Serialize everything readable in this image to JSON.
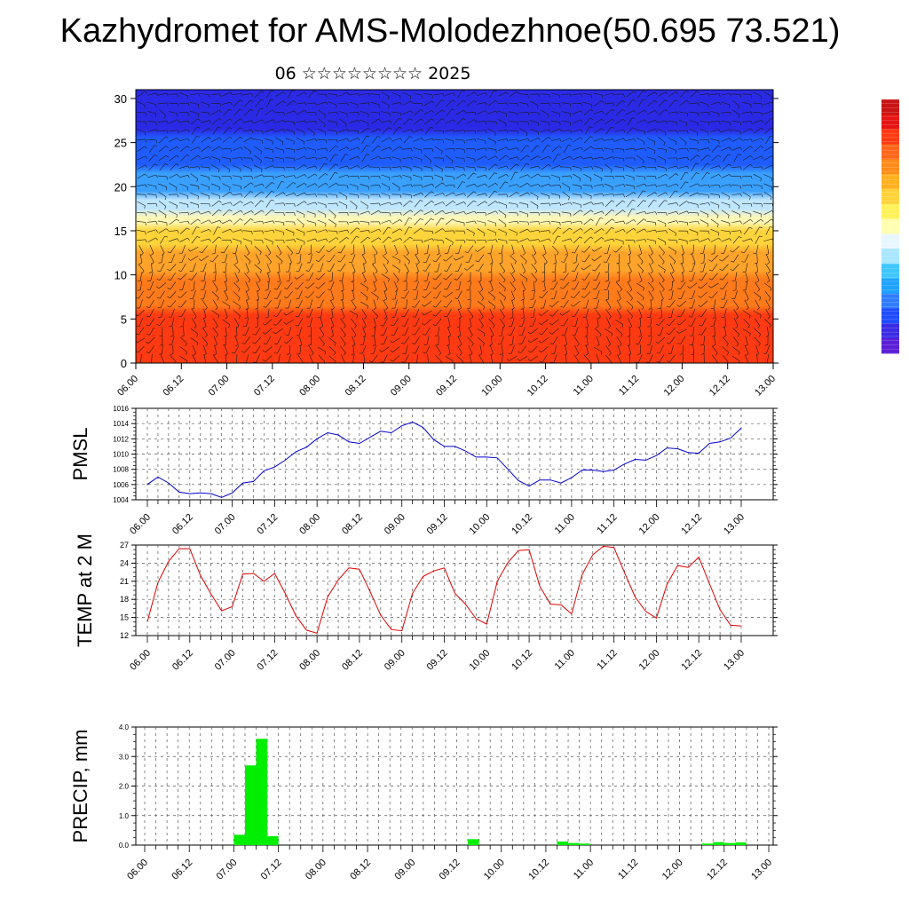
{
  "title": "Kazhydromet for AMS-Molodezhnoe(50.695 73.521)",
  "subtitle": "06 ☆☆☆☆☆☆☆☆ 2025",
  "chart_data": [
    {
      "type": "heatmap",
      "description_of_content": "time-height field with overlaid wind vectors",
      "x_tick_labels": [
        "06.00",
        "06.12",
        "07.00",
        "07.12",
        "08.00",
        "08.12",
        "09.00",
        "09.12",
        "10.00",
        "10.12",
        "11.00",
        "11.12",
        "12.00",
        "12.12",
        "13.00"
      ],
      "y_ticks": [
        0,
        5,
        10,
        15,
        20,
        25,
        30
      ],
      "ylim": [
        0,
        31
      ],
      "colorbar_colors": [
        "#5a1fd6",
        "#3a2be6",
        "#1f4cff",
        "#2f7cff",
        "#1fa2ff",
        "#3fc6ff",
        "#a9e6ff",
        "#e8f6ff",
        "#ffffb0",
        "#fff15a",
        "#ffd23a",
        "#ffb01f",
        "#ff8c1a",
        "#ff661a",
        "#ff3a12",
        "#e61414",
        "#c81414"
      ],
      "field_bands": [
        {
          "from": 0,
          "to": 6,
          "color": "#ff3a12"
        },
        {
          "from": 6,
          "to": 10,
          "color": "#ff7a1a"
        },
        {
          "from": 10,
          "to": 13,
          "color": "#ffa32a"
        },
        {
          "from": 13,
          "to": 15.5,
          "color": "#ffd43a"
        },
        {
          "from": 15.5,
          "to": 17,
          "color": "#fff7b5"
        },
        {
          "from": 17,
          "to": 19,
          "color": "#bfe6ff"
        },
        {
          "from": 19,
          "to": 22,
          "color": "#3aa0ff"
        },
        {
          "from": 22,
          "to": 26,
          "color": "#1f5cff"
        },
        {
          "from": 26,
          "to": 31,
          "color": "#2a2ae6"
        }
      ]
    },
    {
      "type": "line",
      "ylabel": "PMSL",
      "x_tick_labels": [
        "06.00",
        "06.12",
        "07.00",
        "07.12",
        "08.00",
        "08.12",
        "09.00",
        "09.12",
        "10.00",
        "10.12",
        "11.00",
        "11.12",
        "12.00",
        "12.12",
        "13.00"
      ],
      "ylim": [
        1004,
        1016
      ],
      "y_ticks": [
        1004,
        1006,
        1008,
        1010,
        1012,
        1014,
        1016
      ],
      "color": "#0000cc",
      "values": [
        1006.0,
        1007.0,
        1006.2,
        1005.0,
        1004.8,
        1004.9,
        1004.8,
        1004.3,
        1004.9,
        1006.2,
        1006.4,
        1007.8,
        1008.3,
        1009.2,
        1010.3,
        1010.9,
        1012.0,
        1012.8,
        1012.5,
        1011.6,
        1011.4,
        1012.2,
        1013.0,
        1012.8,
        1013.7,
        1014.2,
        1013.5,
        1011.9,
        1011.0,
        1011.0,
        1010.4,
        1009.6,
        1009.6,
        1009.5,
        1008.0,
        1006.5,
        1005.8,
        1006.6,
        1006.6,
        1006.2,
        1006.9,
        1007.9,
        1007.9,
        1007.7,
        1007.9,
        1008.7,
        1009.3,
        1009.2,
        1009.8,
        1010.8,
        1010.7,
        1010.2,
        1010.1,
        1011.4,
        1011.6,
        1012.1,
        1013.4
      ]
    },
    {
      "type": "line",
      "ylabel": "TEMP at 2 M",
      "x_tick_labels": [
        "06.00",
        "06.12",
        "07.00",
        "07.12",
        "08.00",
        "08.12",
        "09.00",
        "09.12",
        "10.00",
        "10.12",
        "11.00",
        "11.12",
        "12.00",
        "12.12",
        "13.00"
      ],
      "ylim": [
        12,
        27
      ],
      "y_ticks": [
        12,
        15,
        18,
        21,
        24,
        27
      ],
      "color": "#dd0000",
      "values": [
        14.3,
        20.8,
        24.3,
        26.4,
        26.4,
        22.0,
        18.9,
        16.1,
        16.8,
        22.2,
        22.3,
        21.0,
        22.3,
        19.0,
        15.3,
        12.9,
        12.4,
        18.4,
        21.2,
        23.2,
        23.0,
        19.3,
        15.4,
        13.0,
        12.8,
        19.0,
        21.8,
        22.7,
        23.2,
        19.0,
        17.2,
        14.8,
        13.9,
        21.0,
        24.1,
        26.1,
        26.2,
        20.2,
        17.2,
        17.1,
        15.6,
        22.1,
        25.4,
        26.8,
        26.6,
        22.4,
        18.4,
        16.0,
        14.9,
        20.5,
        23.6,
        23.3,
        25.0,
        20.6,
        16.3,
        13.7,
        13.6
      ]
    },
    {
      "type": "bar",
      "ylabel": "PRECIP, mm",
      "x_tick_labels": [
        "06.00",
        "06.12",
        "07.00",
        "07.12",
        "08.00",
        "08.12",
        "09.00",
        "09.12",
        "10.00",
        "10.12",
        "11.00",
        "11.12",
        "12.00",
        "12.12",
        "13.00"
      ],
      "ylim": [
        0,
        4
      ],
      "y_tick_labels": [
        "0.0",
        "1.0",
        "2.0",
        "3.0",
        "4.0"
      ],
      "color": "#00ee00",
      "values": [
        0,
        0,
        0,
        0,
        0,
        0,
        0,
        0,
        0.35,
        2.7,
        3.6,
        0.3,
        0,
        0,
        0,
        0,
        0,
        0,
        0,
        0,
        0,
        0,
        0,
        0,
        0,
        0,
        0,
        0,
        0,
        0.2,
        0,
        0,
        0,
        0,
        0,
        0,
        0,
        0.12,
        0.07,
        0.05,
        0,
        0,
        0,
        0,
        0,
        0,
        0,
        0,
        0,
        0,
        0.05,
        0.1,
        0.07,
        0.09,
        0,
        0
      ]
    }
  ]
}
